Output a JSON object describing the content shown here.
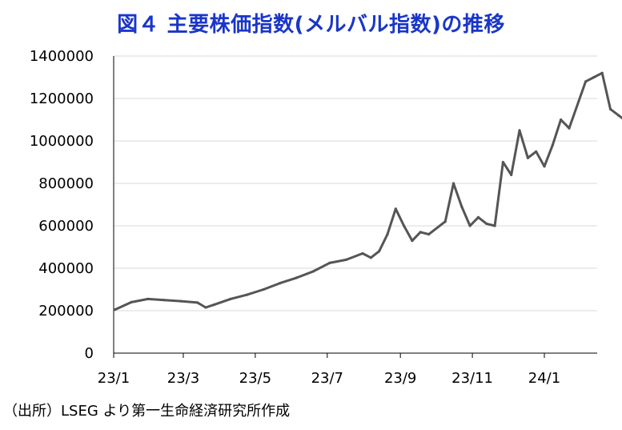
{
  "title": "図４ 主要株価指数(メルバル指数)の推移",
  "source": "（出所）LSEG より第一生命経済研究所作成",
  "colors": {
    "title": "#1a36c8",
    "line": "#555555",
    "grid": "#d9d9d9",
    "axis": "#000000"
  },
  "chart_data": {
    "type": "line",
    "title": "図４ 主要株価指数(メルバル指数)の推移",
    "xlabel": "",
    "ylabel": "",
    "ylim": [
      0,
      1400000
    ],
    "yticks": [
      0,
      200000,
      400000,
      600000,
      800000,
      1000000,
      1200000,
      1400000
    ],
    "xticks": [
      "23/1",
      "23/3",
      "23/5",
      "23/7",
      "23/9",
      "23/11",
      "24/1"
    ],
    "grid": true,
    "legend": "none",
    "series": [
      {
        "x": [
          "2023-01-02",
          "2023-01-16",
          "2023-01-30",
          "2023-02-13",
          "2023-02-27",
          "2023-03-13",
          "2023-03-20",
          "2023-03-27",
          "2023-04-10",
          "2023-04-24",
          "2023-05-08",
          "2023-05-22",
          "2023-06-05",
          "2023-06-19",
          "2023-07-03",
          "2023-07-17",
          "2023-07-31",
          "2023-08-07",
          "2023-08-14",
          "2023-08-21",
          "2023-08-28",
          "2023-09-04",
          "2023-09-11",
          "2023-09-18",
          "2023-09-25",
          "2023-10-09",
          "2023-10-16",
          "2023-10-23",
          "2023-10-30",
          "2023-11-06",
          "2023-11-13",
          "2023-11-20",
          "2023-11-27",
          "2023-12-04",
          "2023-12-11",
          "2023-12-18",
          "2023-12-25",
          "2024-01-01",
          "2024-01-08",
          "2024-01-15",
          "2024-01-22",
          "2024-02-05",
          "2024-02-12",
          "2024-02-19",
          "2024-02-26",
          "2024-03-04",
          "2024-03-11"
        ],
        "values": [
          205000,
          240000,
          255000,
          250000,
          245000,
          238000,
          215000,
          228000,
          255000,
          275000,
          300000,
          330000,
          355000,
          385000,
          425000,
          440000,
          470000,
          450000,
          480000,
          560000,
          680000,
          600000,
          530000,
          570000,
          560000,
          620000,
          800000,
          690000,
          600000,
          640000,
          610000,
          600000,
          900000,
          840000,
          1050000,
          920000,
          950000,
          880000,
          980000,
          1100000,
          1060000,
          1280000,
          1300000,
          1320000,
          1150000,
          1120000,
          1090000
        ]
      }
    ]
  }
}
